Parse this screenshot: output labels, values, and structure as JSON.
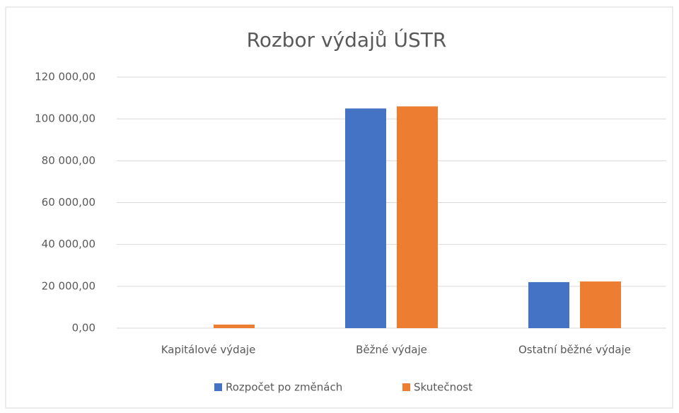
{
  "chart_data": {
    "type": "bar",
    "title": "Rozbor výdajů ÚSTR",
    "categories": [
      "Kapitálové výdaje",
      "Běžné výdaje",
      "Ostatní běžné výdaje"
    ],
    "series": [
      {
        "name": "Rozpočet po změnách",
        "color": "#4472c4",
        "values": [
          0,
          105000,
          22000
        ]
      },
      {
        "name": "Skutečnost",
        "color": "#ed7d31",
        "values": [
          1700,
          106000,
          22300
        ]
      }
    ],
    "ylim": [
      0,
      120000
    ],
    "yticks": [
      {
        "value": 0,
        "label": "0,00"
      },
      {
        "value": 20000,
        "label": "20 000,00"
      },
      {
        "value": 40000,
        "label": "40 000,00"
      },
      {
        "value": 60000,
        "label": "60 000,00"
      },
      {
        "value": 80000,
        "label": "80 000,00"
      },
      {
        "value": 100000,
        "label": "100 000,00"
      },
      {
        "value": 120000,
        "label": "120 000,00"
      }
    ],
    "grid": true,
    "legend": "bottom"
  }
}
